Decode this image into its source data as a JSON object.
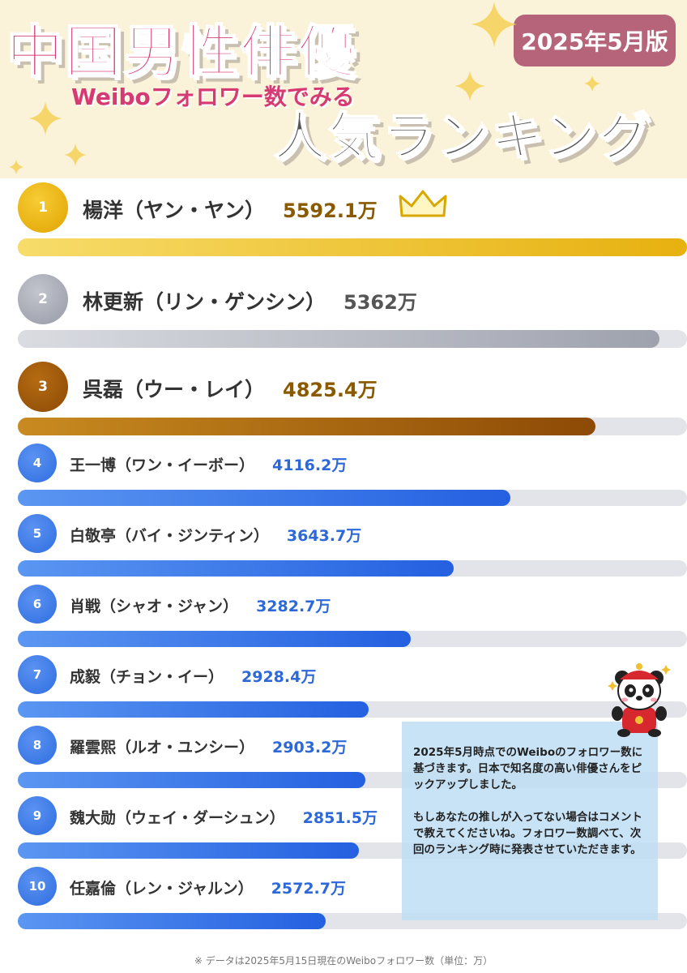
{
  "header": {
    "title_main": "中国男性俳優",
    "title_sub": "Weiboフォロワー数でみる",
    "title_rank": "人気ランキング",
    "date_badge": "2025年5月版"
  },
  "chart_data": {
    "type": "bar",
    "orientation": "horizontal",
    "unit": "万",
    "xlim": [
      0,
      5592.1
    ],
    "categories": [
      "楊洋（ヤン・ヤン）",
      "林更新（リン・ゲンシン）",
      "呉磊（ウー・レイ）",
      "王一博（ワン・イーボー）",
      "白敬亭（バイ・ジンティン）",
      "肖戦（シャオ・ジャン）",
      "成毅（チョン・イー）",
      "羅雲熙（ルオ・ユンシー）",
      "魏大勋（ウェイ・ダーシュン）",
      "任嘉倫（レン・ジャルン）"
    ],
    "values": [
      5592.1,
      5362,
      4825.4,
      4116.2,
      3643.7,
      3282.7,
      2928.4,
      2903.2,
      2851.5,
      2572.7
    ],
    "ranks": [
      "1",
      "2",
      "3",
      "4",
      "5",
      "6",
      "7",
      "8",
      "9",
      "10"
    ],
    "value_labels": [
      "5592.1万",
      "5362万",
      "4825.4万",
      "4116.2万",
      "3643.7万",
      "3282.7万",
      "2928.4万",
      "2903.2万",
      "2851.5万",
      "2572.7万"
    ],
    "colors": {
      "gold": "#e7b10f",
      "silver": "#9ea2ad",
      "bronze": "#a05a08",
      "blue": "#3a78ea",
      "track": "#e3e4ea"
    }
  },
  "note": {
    "line1": "2025年5月時点でのWeiboのフォロワー数に基づきます。日本で知名度の高い俳優さんをピックアップしました。",
    "line2": "もしあなたの推しが入ってない場合はコメントで教えてくださいね。フォロワー数調べて、次回のランキング時に発表させていただきます。"
  },
  "footer": "※ データは2025年5月15日現在のWeiboフォロワー数（単位：万）",
  "icons": [
    "crown-icon",
    "panda-mascot-icon",
    "sparkle-icon"
  ]
}
